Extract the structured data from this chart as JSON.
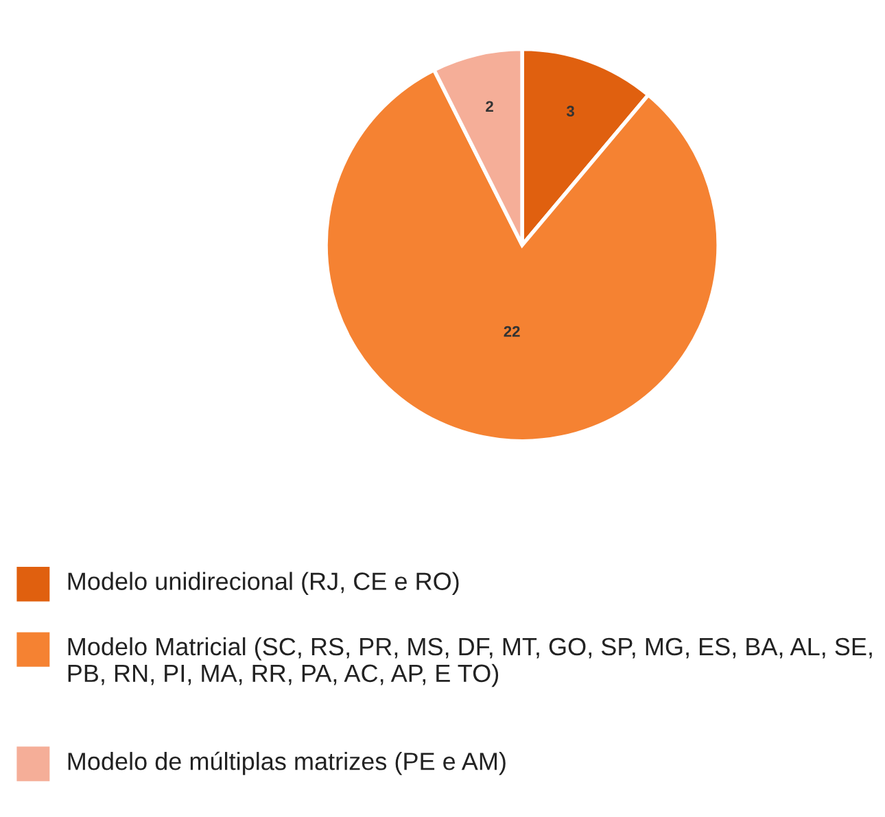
{
  "chart_data": {
    "type": "pie",
    "categories": [
      "Modelo unidirecional (RJ, CE e RO)",
      "Modelo Matricial (SC, RS, PR, MS, DF, MT, GO, SP, MG, ES, BA, AL, SE, PB, RN, PI, MA, RR, PA, AC, AP, E TO)",
      "Modelo de múltiplas matrizes (PE e AM)"
    ],
    "values": [
      3,
      22,
      2
    ],
    "colors": [
      "#e0600f",
      "#f58232",
      "#f5ae98"
    ],
    "data_labels": true,
    "legend": "bottom"
  }
}
